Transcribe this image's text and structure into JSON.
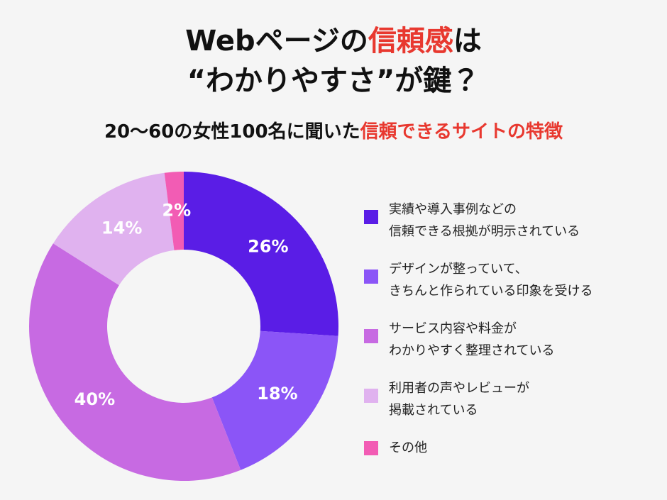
{
  "chart_data": {
    "type": "donut",
    "title": [
      [
        {
          "text": "Webページの",
          "color": "#111111"
        },
        {
          "text": "信頼感",
          "color": "#e8382f"
        },
        {
          "text": "は",
          "color": "#111111"
        }
      ],
      [
        {
          "text": "“わかりやすさ”が鍵？",
          "color": "#111111"
        }
      ]
    ],
    "subtitle": [
      {
        "text": "20〜60の女性100名に聞いた",
        "color": "#111111"
      },
      {
        "text": "信頼できるサイトの特徴",
        "color": "#e8382f"
      }
    ],
    "categories": [
      "実績や導入事例などの\n信頼できる根拠が明示されている",
      "デザインが整っていて、\nきちんと作られている印象を受ける",
      "サービス内容や料金が\nわかりやすく整理されている",
      "利用者の声やレビューが\n掲載されている",
      "その他"
    ],
    "values": [
      26,
      18,
      40,
      14,
      2
    ],
    "value_labels": [
      "26%",
      "18%",
      "40%",
      "14%",
      "2%"
    ],
    "colors": [
      "#5a1de6",
      "#8b55f7",
      "#c76ae2",
      "#e0b2ef",
      "#f25cb4"
    ]
  }
}
